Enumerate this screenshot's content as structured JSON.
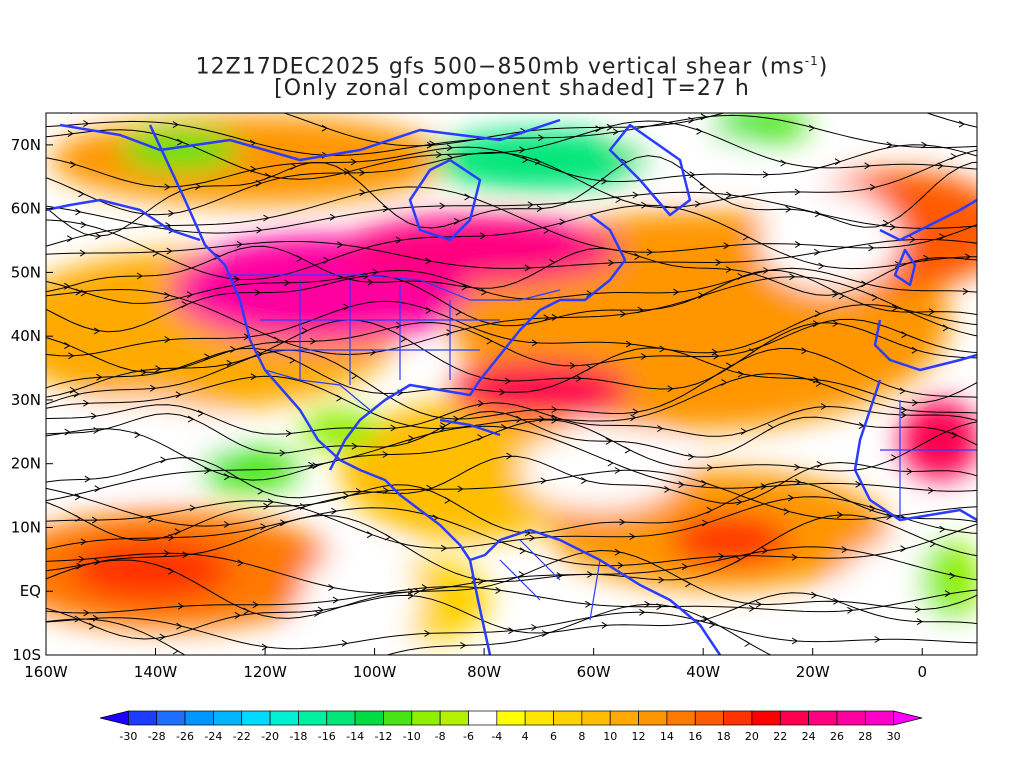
{
  "title": {
    "line1_prefix": "12Z17DEC2025 gfs 500−850mb vertical shear (ms",
    "line1_sup": "-1",
    "line1_suffix": ")",
    "line2": "[Only zonal component shaded] T=27 h"
  },
  "map": {
    "lon_range": [
      -160,
      10
    ],
    "lat_range": [
      -10,
      75
    ],
    "lat_ticks": [
      {
        "value": 70,
        "label": "70N"
      },
      {
        "value": 60,
        "label": "60N"
      },
      {
        "value": 50,
        "label": "50N"
      },
      {
        "value": 40,
        "label": "40N"
      },
      {
        "value": 30,
        "label": "30N"
      },
      {
        "value": 20,
        "label": "20N"
      },
      {
        "value": 10,
        "label": "10N"
      },
      {
        "value": 0,
        "label": "EQ"
      },
      {
        "value": -10,
        "label": "10S"
      }
    ],
    "lon_ticks": [
      {
        "value": -160,
        "label": "160W"
      },
      {
        "value": -140,
        "label": "140W"
      },
      {
        "value": -120,
        "label": "120W"
      },
      {
        "value": -100,
        "label": "100W"
      },
      {
        "value": -80,
        "label": "80W"
      },
      {
        "value": -60,
        "label": "60W"
      },
      {
        "value": -40,
        "label": "40W"
      },
      {
        "value": -20,
        "label": "20W"
      },
      {
        "value": 0,
        "label": "0"
      }
    ],
    "coastline_color": "#2a3cff",
    "streamline_color": "#000000"
  },
  "colorbar": {
    "levels": [
      "-30",
      "-28",
      "-26",
      "-24",
      "-22",
      "-20",
      "-18",
      "-16",
      "-14",
      "-12",
      "-10",
      "-8",
      "-6",
      "-4",
      "4",
      "6",
      "8",
      "10",
      "12",
      "14",
      "16",
      "18",
      "20",
      "22",
      "24",
      "26",
      "28",
      "30"
    ],
    "colors": [
      "#1e00ff",
      "#1e3cff",
      "#1e6eff",
      "#0096ff",
      "#00b4ff",
      "#00dcff",
      "#00f0d2",
      "#00f0a0",
      "#00e678",
      "#00dc41",
      "#46e614",
      "#8cf000",
      "#b4f000",
      "#ffffff",
      "#ffff00",
      "#ffe600",
      "#ffd200",
      "#ffbe00",
      "#ffaa00",
      "#ff9600",
      "#ff7800",
      "#ff5a00",
      "#ff3200",
      "#ff0000",
      "#ff0050",
      "#ff0080",
      "#ff00a0",
      "#ff00c8",
      "#ff00ff"
    ]
  }
}
